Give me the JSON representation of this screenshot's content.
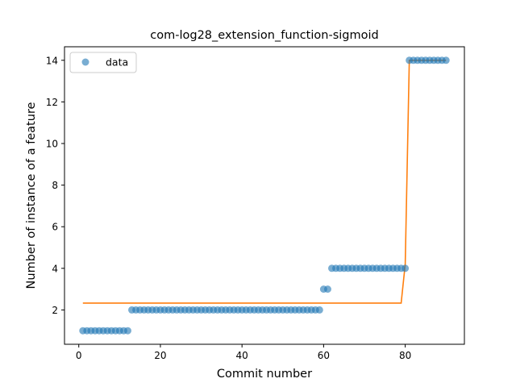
{
  "chart_data": {
    "type": "scatter",
    "title": "com-log28_extension_function-sigmoid",
    "xlabel": "Commit number",
    "ylabel": "Number of instance of a feature",
    "xlim": [
      -3.5,
      94.5
    ],
    "ylim": [
      0.35,
      14.65
    ],
    "xticks": [
      0,
      20,
      40,
      60,
      80
    ],
    "yticks": [
      2,
      4,
      6,
      8,
      10,
      12,
      14
    ],
    "grid": false,
    "legend": {
      "position": "top-left",
      "entries": [
        "data"
      ]
    },
    "colors": {
      "data": "#1f77b4",
      "fit": "#ff7f0e"
    },
    "series": [
      {
        "name": "data",
        "kind": "scatter",
        "x": [
          1,
          2,
          3,
          4,
          5,
          6,
          7,
          8,
          9,
          10,
          11,
          12,
          13,
          14,
          15,
          16,
          17,
          18,
          19,
          20,
          21,
          22,
          23,
          24,
          25,
          26,
          27,
          28,
          29,
          30,
          31,
          32,
          33,
          34,
          35,
          36,
          37,
          38,
          39,
          40,
          41,
          42,
          43,
          44,
          45,
          46,
          47,
          48,
          49,
          50,
          51,
          52,
          53,
          54,
          55,
          56,
          57,
          58,
          59,
          60,
          61,
          62,
          63,
          64,
          65,
          66,
          67,
          68,
          69,
          70,
          71,
          72,
          73,
          74,
          75,
          76,
          77,
          78,
          79,
          80,
          81,
          82,
          83,
          84,
          85,
          86,
          87,
          88,
          89,
          90
        ],
        "y": [
          1,
          1,
          1,
          1,
          1,
          1,
          1,
          1,
          1,
          1,
          1,
          1,
          2,
          2,
          2,
          2,
          2,
          2,
          2,
          2,
          2,
          2,
          2,
          2,
          2,
          2,
          2,
          2,
          2,
          2,
          2,
          2,
          2,
          2,
          2,
          2,
          2,
          2,
          2,
          2,
          2,
          2,
          2,
          2,
          2,
          2,
          2,
          2,
          2,
          2,
          2,
          2,
          2,
          2,
          2,
          2,
          2,
          2,
          2,
          3,
          3,
          4,
          4,
          4,
          4,
          4,
          4,
          4,
          4,
          4,
          4,
          4,
          4,
          4,
          4,
          4,
          4,
          4,
          4,
          4,
          14,
          14,
          14,
          14,
          14,
          14,
          14,
          14,
          14,
          14
        ]
      },
      {
        "name": "",
        "kind": "line",
        "x": [
          1,
          79,
          80,
          81,
          90
        ],
        "y": [
          2.33,
          2.33,
          4.2,
          14.0,
          14.0
        ]
      }
    ]
  }
}
